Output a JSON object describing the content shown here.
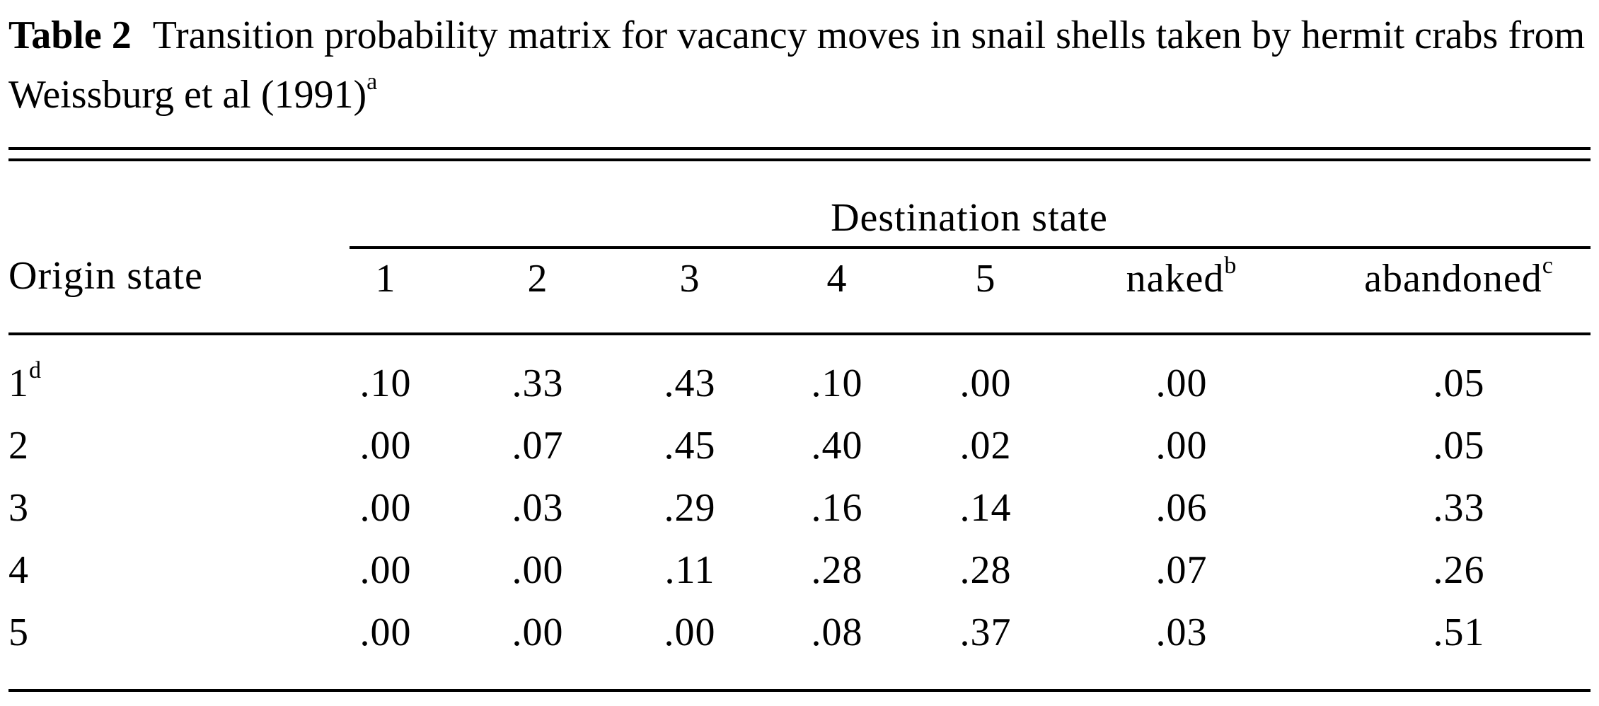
{
  "caption": {
    "label": "Table 2",
    "text": "Transition probability matrix for vacancy moves in snail shells taken by hermit crabs from Weissburg et al (1991)",
    "footnote_mark": "a"
  },
  "header": {
    "group_label": "Destination state",
    "row_header": "Origin state",
    "columns": [
      {
        "label": "1",
        "mark": ""
      },
      {
        "label": "2",
        "mark": ""
      },
      {
        "label": "3",
        "mark": ""
      },
      {
        "label": "4",
        "mark": ""
      },
      {
        "label": "5",
        "mark": ""
      },
      {
        "label": "naked",
        "mark": "b"
      },
      {
        "label": "abandoned",
        "mark": "c"
      }
    ]
  },
  "rows": [
    {
      "origin": "1",
      "mark": "d",
      "values": [
        ".10",
        ".33",
        ".43",
        ".10",
        ".00",
        ".00",
        ".05"
      ]
    },
    {
      "origin": "2",
      "mark": "",
      "values": [
        ".00",
        ".07",
        ".45",
        ".40",
        ".02",
        ".00",
        ".05"
      ]
    },
    {
      "origin": "3",
      "mark": "",
      "values": [
        ".00",
        ".03",
        ".29",
        ".16",
        ".14",
        ".06",
        ".33"
      ]
    },
    {
      "origin": "4",
      "mark": "",
      "values": [
        ".00",
        ".00",
        ".11",
        ".28",
        ".28",
        ".07",
        ".26"
      ]
    },
    {
      "origin": "5",
      "mark": "",
      "values": [
        ".00",
        ".00",
        ".00",
        ".08",
        ".37",
        ".03",
        ".51"
      ]
    }
  ]
}
